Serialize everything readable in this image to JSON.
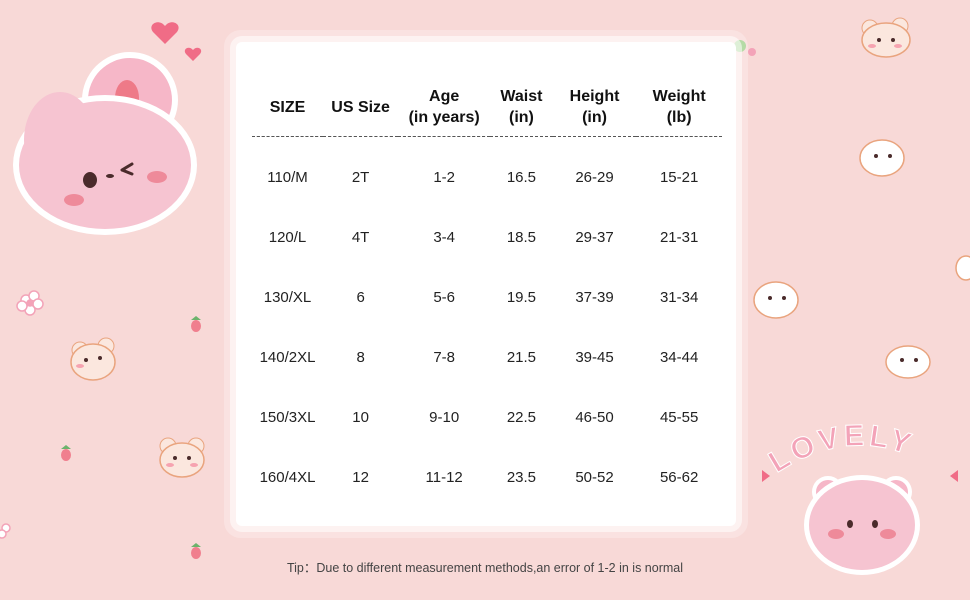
{
  "table": {
    "headers": [
      [
        "SIZE"
      ],
      [
        "US Size"
      ],
      [
        "Age",
        "(in years)"
      ],
      [
        "Waist",
        "(in)"
      ],
      [
        "Height",
        "(in)"
      ],
      [
        "Weight",
        "(lb)"
      ]
    ],
    "rows": [
      [
        "110/M",
        "2T",
        "1-2",
        "16.5",
        "26-29",
        "15-21"
      ],
      [
        "120/L",
        "4T",
        "3-4",
        "18.5",
        "29-37",
        "21-31"
      ],
      [
        "130/XL",
        "6",
        "5-6",
        "19.5",
        "37-39",
        "31-34"
      ],
      [
        "140/2XL",
        "8",
        "7-8",
        "21.5",
        "39-45",
        "34-44"
      ],
      [
        "150/3XL",
        "10",
        "9-10",
        "22.5",
        "46-50",
        "45-55"
      ],
      [
        "160/4XL",
        "12",
        "11-12",
        "23.5",
        "50-52",
        "56-62"
      ]
    ]
  },
  "tip": "Tip：Due to different measurement methods,an error of 1-2 in is normal",
  "decor": {
    "lovely_text": "LOVELY",
    "icons": [
      "bunny-icon",
      "bear-icon",
      "cat-icon",
      "heart-icon",
      "strawberry-icon",
      "flower-icon"
    ]
  },
  "colors": {
    "background": "#f8d9d7",
    "panel": "#ffffff",
    "pink_accent": "#f3a3b8",
    "heart": "#f06c86"
  }
}
